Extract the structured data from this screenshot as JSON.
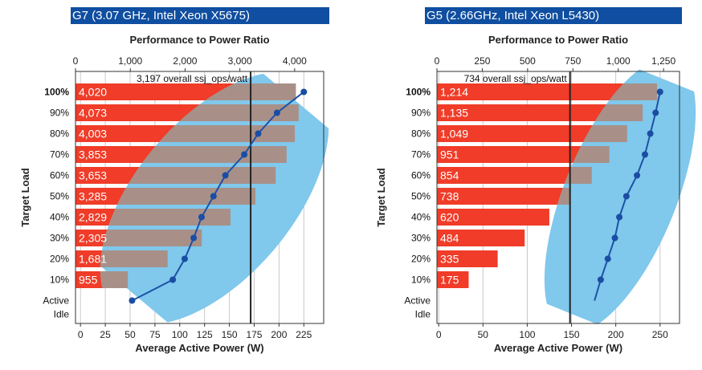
{
  "chart_data": [
    {
      "type": "bar",
      "title": "G7 (3.07 GHz, Intel Xeon X5675)",
      "top_axis_label": "Performance to Power Ratio",
      "xlabel": "Average Active Power (W)",
      "ylabel": "Target Load",
      "categories": [
        "100%",
        "90%",
        "80%",
        "70%",
        "60%",
        "50%",
        "40%",
        "30%",
        "20%",
        "10%",
        "Active\nIdle"
      ],
      "ratio_values": [
        4020,
        4073,
        4003,
        3853,
        3653,
        3285,
        2829,
        2305,
        1681,
        955,
        null
      ],
      "ratio_labels": [
        "4,020",
        "4,073",
        "4,003",
        "3,853",
        "3,653",
        "3,285",
        "2,829",
        "2,305",
        "1,681",
        "955",
        ""
      ],
      "power_values": [
        225,
        198,
        179,
        165,
        146,
        134,
        122,
        114,
        105,
        93,
        52
      ],
      "overall_ratio": 3197,
      "overall_label": "3,197 overall ssj_ops/watt",
      "ratio_axis": {
        "min": 0,
        "max": 4530,
        "ticks": [
          0,
          1000,
          2000,
          3000,
          4000
        ],
        "tick_labels": [
          "0",
          "1,000",
          "2,000",
          "3,000",
          "4,000"
        ]
      },
      "power_axis": {
        "min": -5,
        "max": 245,
        "ticks": [
          0,
          25,
          50,
          75,
          100,
          125,
          150,
          175,
          200,
          225
        ],
        "tick_labels": [
          "0",
          "25",
          "50",
          "75",
          "100",
          "125",
          "150",
          "175",
          "200",
          "225"
        ]
      },
      "grid": true
    },
    {
      "type": "bar",
      "title": "G5 (2.66GHz, Intel Xeon L5430)",
      "top_axis_label": "Performance to Power Ratio",
      "xlabel": "Average Active Power (W)",
      "ylabel": "Target Load",
      "categories": [
        "100%",
        "90%",
        "80%",
        "70%",
        "60%",
        "50%",
        "40%",
        "30%",
        "20%",
        "10%",
        "Active\nIdle"
      ],
      "ratio_values": [
        1214,
        1135,
        1049,
        951,
        854,
        738,
        620,
        484,
        335,
        175,
        null
      ],
      "ratio_labels": [
        "1,214",
        "1,135",
        "1,049",
        "951",
        "854",
        "738",
        "620",
        "484",
        "335",
        "175",
        ""
      ],
      "power_values": [
        250,
        245,
        239,
        233,
        224,
        212,
        204,
        199,
        191,
        183,
        176
      ],
      "overall_ratio": 734,
      "overall_label": "734 overall ssj_ops/watt",
      "ratio_axis": {
        "min": 0,
        "max": 1338,
        "ticks": [
          0,
          250,
          500,
          750,
          1000,
          1250
        ],
        "tick_labels": [
          "0",
          "250",
          "500",
          "750",
          "1,000",
          "1,250"
        ]
      },
      "power_axis": {
        "min": -2,
        "max": 272,
        "ticks": [
          0,
          50,
          100,
          150,
          200,
          250
        ],
        "tick_labels": [
          "0",
          "50",
          "100",
          "150",
          "200",
          "250"
        ]
      },
      "grid": true
    }
  ],
  "colors": {
    "title_bg": "#0f4ea0",
    "bar": "#f03c28",
    "overlap": "#a89088",
    "ellipse": "#80c8ec",
    "line": "#1c52a8",
    "marker": "#1a4da3",
    "grid": "#c8c8c8"
  }
}
